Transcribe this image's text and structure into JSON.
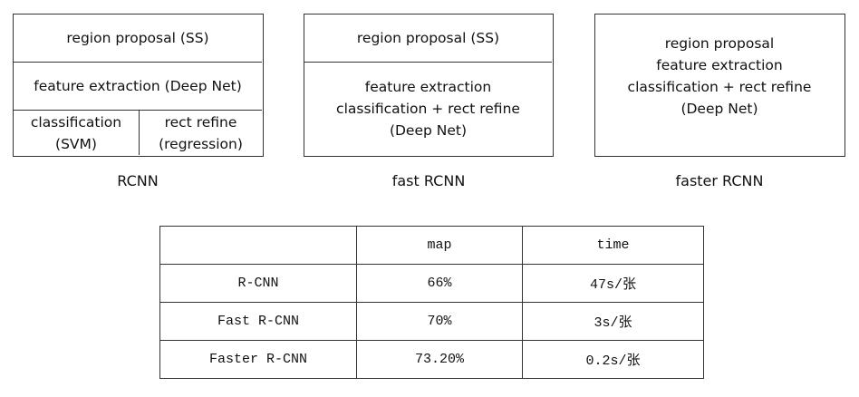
{
  "diagrams": [
    {
      "caption": "RCNN",
      "cells": [
        {
          "lines": [
            "region proposal (SS)"
          ]
        },
        {
          "lines": [
            "feature extraction (Deep Net)"
          ]
        },
        {
          "lines": [
            "classification",
            "(SVM)"
          ]
        },
        {
          "lines": [
            "rect refine",
            "(regression)"
          ]
        }
      ]
    },
    {
      "caption": "fast RCNN",
      "cells": [
        {
          "lines": [
            "region proposal (SS)"
          ]
        },
        {
          "lines": [
            "feature extraction",
            "classification + rect refine",
            "(Deep Net)"
          ]
        }
      ]
    },
    {
      "caption": "faster RCNN",
      "cells": [
        {
          "lines": [
            "region proposal",
            "feature extraction",
            "classification + rect refine",
            "(Deep Net)"
          ]
        }
      ]
    }
  ],
  "table": {
    "header": [
      "map",
      "time"
    ],
    "rows": [
      [
        "R-CNN",
        "66%",
        "47s/张"
      ],
      [
        "Fast R-CNN",
        "70%",
        "3s/张"
      ],
      [
        "Faster R-CNN",
        "73.20%",
        "0.2s/张"
      ]
    ]
  }
}
